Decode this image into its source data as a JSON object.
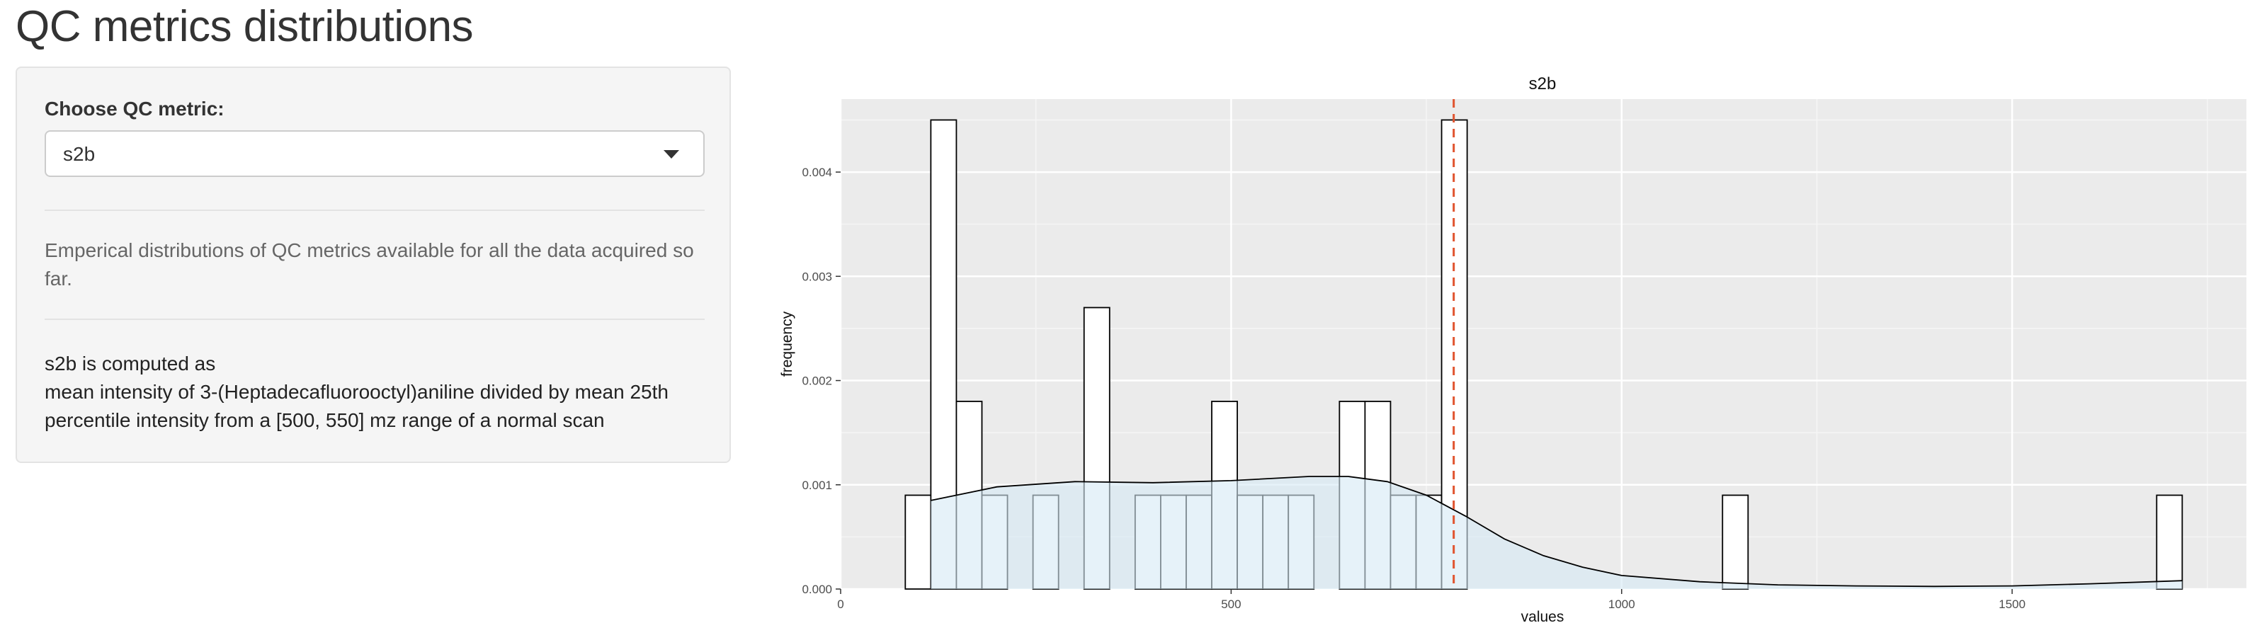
{
  "page": {
    "title": "QC metrics distributions"
  },
  "sidebar": {
    "choose_label": "Choose QC metric:",
    "selected_metric": "s2b",
    "description": "Emperical distributions of QC metrics available for all the data acquired so far.",
    "computed_as_lines": [
      "s2b is computed as",
      "mean intensity of 3-(Heptadecafluorooctyl)aniline divided by mean 25th",
      "percentile intensity from a [500, 550] mz range of a normal scan"
    ]
  },
  "colors": {
    "panel_bg": "#f5f5f5",
    "plot_bg": "#ebebeb",
    "bar_fill": "#ffffff",
    "density_fill": "#d6eaf5",
    "reference_line": "#e0532e"
  },
  "chart_data": {
    "type": "bar",
    "subtype": "histogram with density overlay",
    "title": "s2b",
    "xlabel": "values",
    "ylabel": "frequency",
    "xlim": [
      0,
      1800
    ],
    "ylim": [
      0,
      0.0047
    ],
    "x_ticks": [
      0,
      500,
      1000,
      1500
    ],
    "y_ticks": [
      0.0,
      0.001,
      0.002,
      0.003,
      0.004
    ],
    "y_tick_labels": [
      "0.000",
      "0.001",
      "0.002",
      "0.003",
      "0.004"
    ],
    "grid": true,
    "legend": "none",
    "bin_width": 32.7,
    "bins": [
      {
        "x0": 82.8,
        "value": 0.0009
      },
      {
        "x0": 115.5,
        "value": 0.0045
      },
      {
        "x0": 148.2,
        "value": 0.0018
      },
      {
        "x0": 180.9,
        "value": 0.0009
      },
      {
        "x0": 246.3,
        "value": 0.0009
      },
      {
        "x0": 311.7,
        "value": 0.0027
      },
      {
        "x0": 377.1,
        "value": 0.0009
      },
      {
        "x0": 409.8,
        "value": 0.0009
      },
      {
        "x0": 442.5,
        "value": 0.0009
      },
      {
        "x0": 475.2,
        "value": 0.0018
      },
      {
        "x0": 507.9,
        "value": 0.0009
      },
      {
        "x0": 540.6,
        "value": 0.0009
      },
      {
        "x0": 573.3,
        "value": 0.0009
      },
      {
        "x0": 638.7,
        "value": 0.0018
      },
      {
        "x0": 671.4,
        "value": 0.0018
      },
      {
        "x0": 704.1,
        "value": 0.0009
      },
      {
        "x0": 736.8,
        "value": 0.0009
      },
      {
        "x0": 769.5,
        "value": 0.0045
      },
      {
        "x0": 1129.2,
        "value": 0.0009
      },
      {
        "x0": 1685.1,
        "value": 0.0009
      }
    ],
    "density": {
      "x": [
        115.5,
        200,
        300,
        400,
        500,
        600,
        650,
        700,
        750,
        800,
        850,
        900,
        950,
        1000,
        1100,
        1200,
        1300,
        1400,
        1500,
        1600,
        1717.8
      ],
      "y": [
        0.00085,
        0.00098,
        0.00103,
        0.00102,
        0.00104,
        0.00108,
        0.00108,
        0.00103,
        0.0009,
        0.0007,
        0.00048,
        0.00032,
        0.00021,
        0.00013,
        7e-05,
        4e-05,
        3e-05,
        2.5e-05,
        3e-05,
        5e-05,
        8e-05
      ]
    },
    "reference_line_x": 785
  }
}
